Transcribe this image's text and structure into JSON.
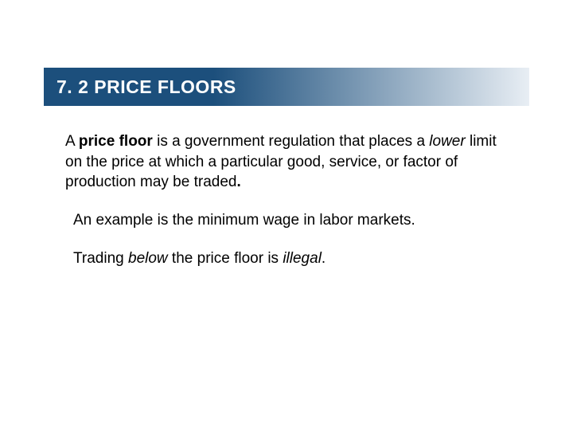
{
  "header": {
    "title": "7. 2 PRICE FLOORS",
    "gradient_start": "#1c4f7c",
    "gradient_end": "#e8eef4",
    "text_color": "#ffffff",
    "fontsize": 23
  },
  "body": {
    "p1_a": "A ",
    "p1_bold": "price floor",
    "p1_b": " is a government regulation that places a ",
    "p1_italic": "lower",
    "p1_c": " limit on the price at which a particular good, service, or factor of production may be traded",
    "p1_dot": ".",
    "p2": "An example is the minimum wage in labor markets.",
    "p3_a": "Trading ",
    "p3_i1": "below",
    "p3_b": " the price floor is ",
    "p3_i2": "illegal",
    "p3_c": ".",
    "text_color": "#000000",
    "fontsize": 19
  },
  "layout": {
    "slide_w": 720,
    "slide_h": 540,
    "background": "#ffffff"
  }
}
